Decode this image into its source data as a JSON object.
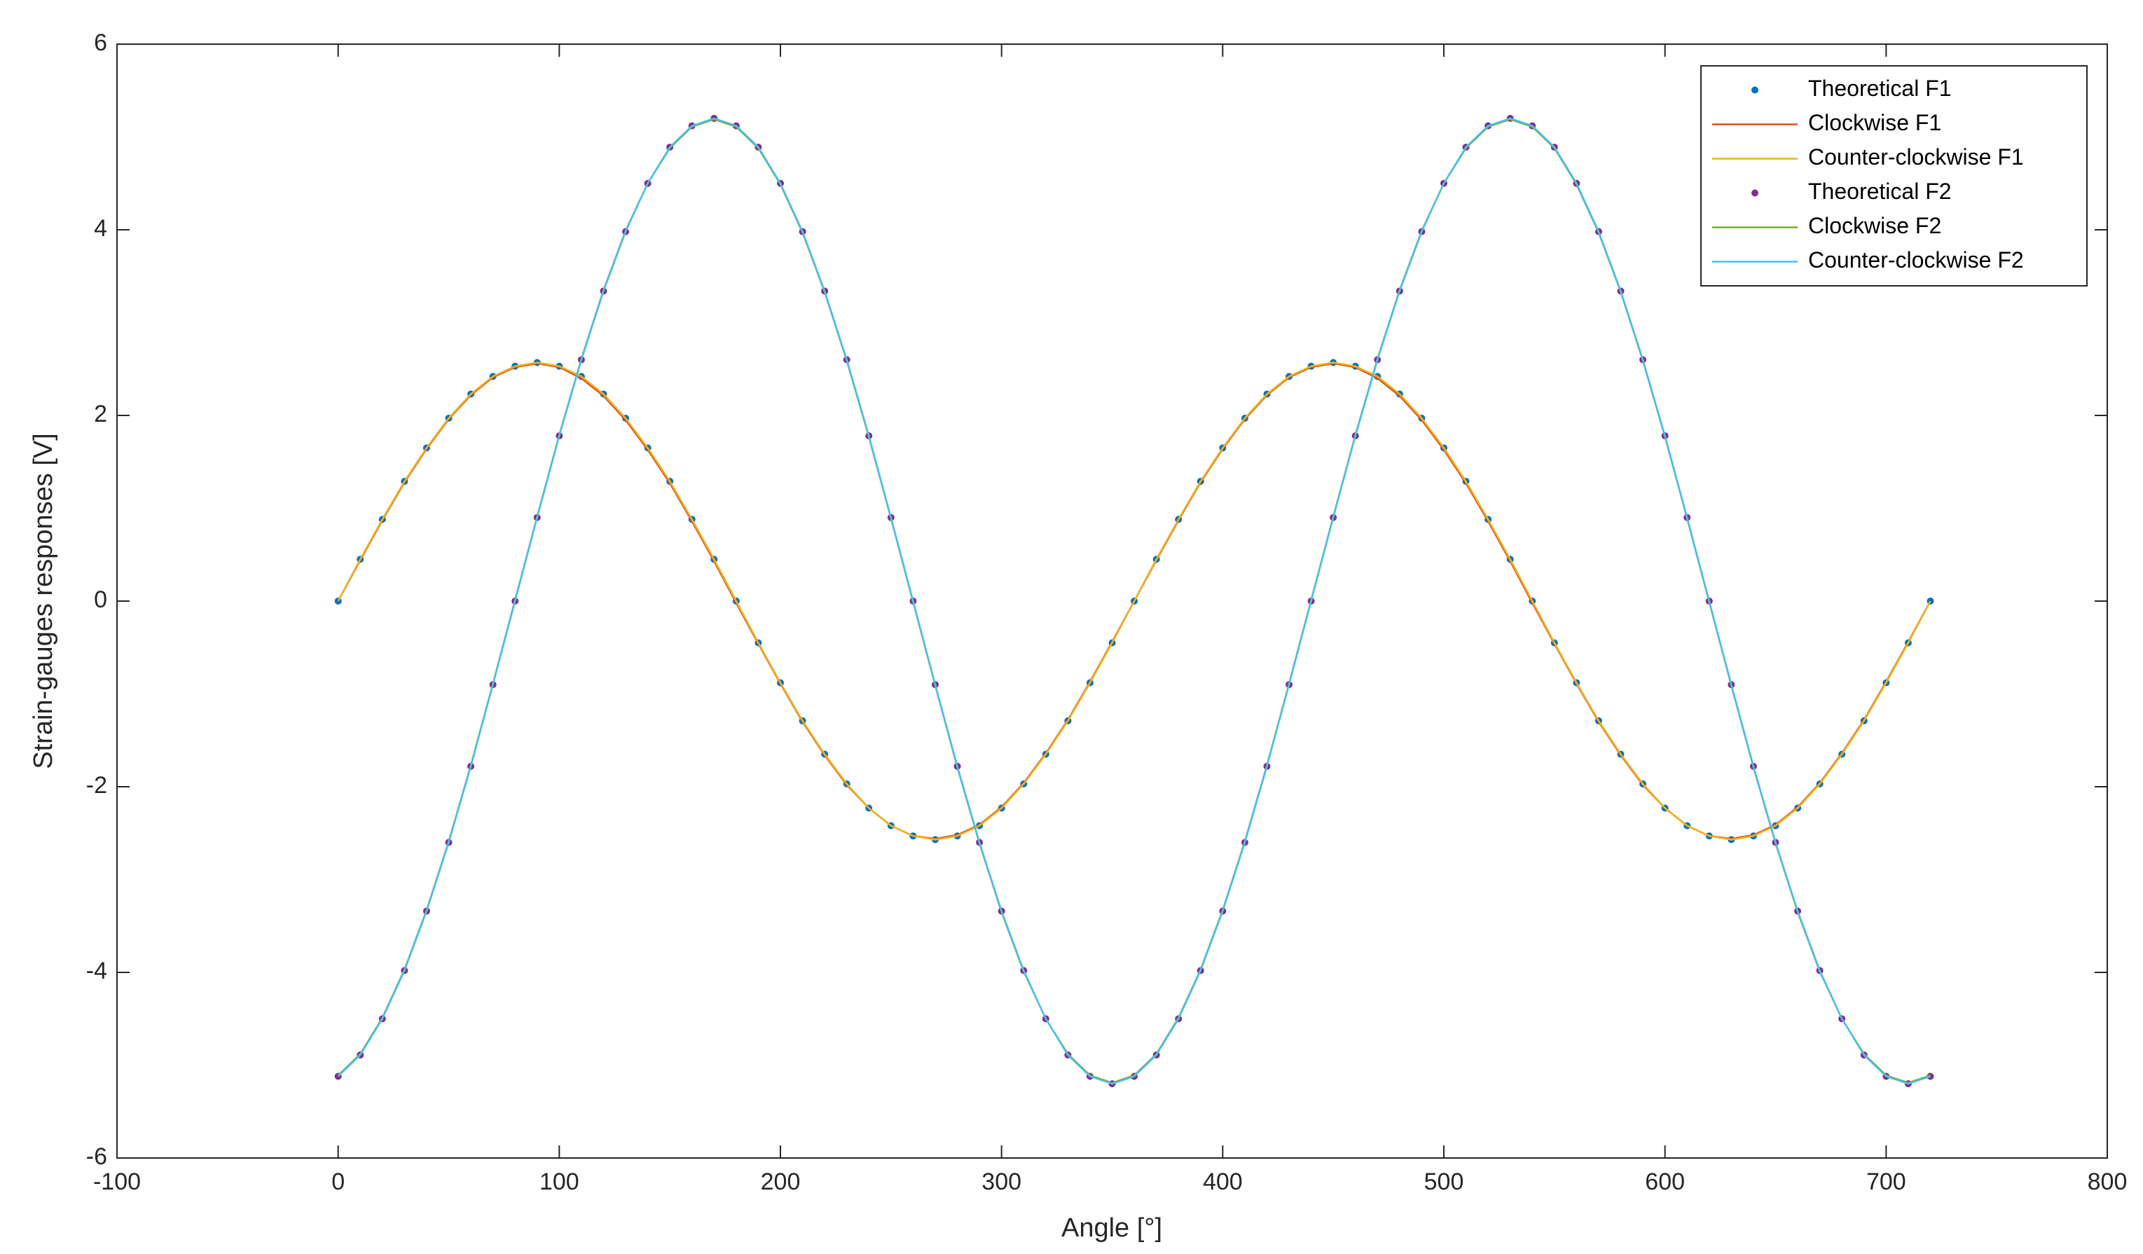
{
  "chart_data": {
    "type": "line",
    "xlabel": "Angle [°]",
    "ylabel": "Strain-gauges responses [V]",
    "xlim": [
      -100,
      800
    ],
    "xticks": [
      -100,
      0,
      100,
      200,
      300,
      400,
      500,
      600,
      700,
      800
    ],
    "ylim": [
      -6,
      6
    ],
    "yticks": [
      -6,
      -4,
      -2,
      0,
      2,
      4,
      6
    ],
    "legend": "upper right",
    "x": [
      0,
      10,
      20,
      30,
      40,
      50,
      60,
      70,
      80,
      90,
      100,
      110,
      120,
      130,
      140,
      150,
      160,
      170,
      180,
      190,
      200,
      210,
      220,
      230,
      240,
      250,
      260,
      270,
      280,
      290,
      300,
      310,
      320,
      330,
      340,
      350,
      360,
      370,
      380,
      390,
      400,
      410,
      420,
      430,
      440,
      450,
      460,
      470,
      480,
      490,
      500,
      510,
      520,
      530,
      540,
      550,
      560,
      570,
      580,
      590,
      600,
      610,
      620,
      630,
      640,
      650,
      660,
      670,
      680,
      690,
      700,
      710,
      720
    ],
    "series": [
      {
        "name": "Theoretical F1",
        "color": "#0072bd",
        "style": "dots",
        "values": [
          0,
          0.45,
          0.88,
          1.29,
          1.65,
          1.97,
          2.23,
          2.42,
          2.53,
          2.57,
          2.53,
          2.42,
          2.23,
          1.97,
          1.65,
          1.29,
          0.88,
          0.45,
          0,
          -0.45,
          -0.88,
          -1.29,
          -1.65,
          -1.97,
          -2.23,
          -2.42,
          -2.53,
          -2.57,
          -2.53,
          -2.42,
          -2.23,
          -1.97,
          -1.65,
          -1.29,
          -0.88,
          -0.45,
          0,
          0.45,
          0.88,
          1.29,
          1.65,
          1.97,
          2.23,
          2.42,
          2.53,
          2.57,
          2.53,
          2.42,
          2.23,
          1.97,
          1.65,
          1.29,
          0.88,
          0.45,
          0,
          -0.45,
          -0.88,
          -1.29,
          -1.65,
          -1.97,
          -2.23,
          -2.42,
          -2.53,
          -2.57,
          -2.53,
          -2.42,
          -2.23,
          -1.97,
          -1.65,
          -1.29,
          -0.88,
          -0.45,
          0
        ]
      },
      {
        "name": "Clockwise F1",
        "color": "#d95319",
        "style": "line",
        "values": [
          0,
          0.44,
          0.87,
          1.28,
          1.64,
          1.96,
          2.22,
          2.41,
          2.52,
          2.56,
          2.52,
          2.4,
          2.21,
          1.95,
          1.63,
          1.27,
          0.86,
          0.43,
          -0.02,
          -0.46,
          -0.89,
          -1.3,
          -1.66,
          -1.98,
          -2.23,
          -2.42,
          -2.53,
          -2.56,
          -2.52,
          -2.41,
          -2.22,
          -1.96,
          -1.64,
          -1.28,
          -0.87,
          -0.44,
          0,
          0.44,
          0.87,
          1.28,
          1.64,
          1.96,
          2.22,
          2.41,
          2.52,
          2.56,
          2.52,
          2.4,
          2.21,
          1.95,
          1.63,
          1.27,
          0.86,
          0.43,
          -0.02,
          -0.46,
          -0.89,
          -1.3,
          -1.66,
          -1.98,
          -2.23,
          -2.42,
          -2.53,
          -2.56,
          -2.52,
          -2.41,
          -2.22,
          -1.96,
          -1.64,
          -1.28,
          -0.87,
          -0.44,
          0
        ]
      },
      {
        "name": "Counter-clockwise F1",
        "color": "#edb120",
        "style": "line",
        "values": [
          0,
          0.45,
          0.88,
          1.29,
          1.65,
          1.97,
          2.23,
          2.42,
          2.53,
          2.57,
          2.53,
          2.42,
          2.23,
          1.97,
          1.65,
          1.29,
          0.88,
          0.45,
          0,
          -0.45,
          -0.88,
          -1.29,
          -1.65,
          -1.97,
          -2.23,
          -2.42,
          -2.53,
          -2.57,
          -2.53,
          -2.42,
          -2.23,
          -1.97,
          -1.65,
          -1.29,
          -0.88,
          -0.45,
          0,
          0.45,
          0.88,
          1.29,
          1.65,
          1.97,
          2.23,
          2.42,
          2.53,
          2.57,
          2.53,
          2.42,
          2.23,
          1.97,
          1.65,
          1.29,
          0.88,
          0.45,
          0,
          -0.45,
          -0.88,
          -1.29,
          -1.65,
          -1.97,
          -2.23,
          -2.42,
          -2.53,
          -2.57,
          -2.53,
          -2.42,
          -2.23,
          -1.97,
          -1.65,
          -1.29,
          -0.88,
          -0.45,
          0
        ]
      },
      {
        "name": "Theoretical F2",
        "color": "#7e2f8e",
        "style": "dots",
        "values": [
          -5.12,
          -4.89,
          -4.5,
          -3.98,
          -3.34,
          -2.6,
          -1.78,
          -0.9,
          0,
          0.9,
          1.78,
          2.6,
          3.34,
          3.98,
          4.5,
          4.89,
          5.12,
          5.2,
          5.12,
          4.89,
          4.5,
          3.98,
          3.34,
          2.6,
          1.78,
          0.9,
          0,
          -0.9,
          -1.78,
          -2.6,
          -3.34,
          -3.98,
          -4.5,
          -4.89,
          -5.12,
          -5.2,
          -5.12,
          -4.89,
          -4.5,
          -3.98,
          -3.34,
          -2.6,
          -1.78,
          -0.9,
          0,
          0.9,
          1.78,
          2.6,
          3.34,
          3.98,
          4.5,
          4.89,
          5.12,
          5.2,
          5.12,
          4.89,
          4.5,
          3.98,
          3.34,
          2.6,
          1.78,
          0.9,
          0,
          -0.9,
          -1.78,
          -2.6,
          -3.34,
          -3.98,
          -4.5,
          -4.89,
          -5.12,
          -5.2,
          -5.12
        ]
      },
      {
        "name": "Clockwise F2",
        "color": "#77ac30",
        "style": "line",
        "values": [
          -5.11,
          -4.88,
          -4.49,
          -3.97,
          -3.33,
          -2.59,
          -1.77,
          -0.89,
          0.01,
          0.91,
          1.79,
          2.61,
          3.35,
          3.99,
          4.5,
          4.88,
          5.11,
          5.19,
          5.11,
          4.88,
          4.49,
          3.97,
          3.33,
          2.59,
          1.77,
          0.89,
          -0.01,
          -0.91,
          -1.79,
          -2.61,
          -3.35,
          -3.99,
          -4.5,
          -4.88,
          -5.11,
          -5.19,
          -5.11,
          -4.88,
          -4.49,
          -3.97,
          -3.33,
          -2.59,
          -1.77,
          -0.89,
          0.01,
          0.91,
          1.79,
          2.61,
          3.35,
          3.99,
          4.5,
          4.88,
          5.11,
          5.19,
          5.11,
          4.88,
          4.49,
          3.97,
          3.33,
          2.59,
          1.77,
          0.89,
          -0.01,
          -0.91,
          -1.79,
          -2.61,
          -3.35,
          -3.99,
          -4.5,
          -4.88,
          -5.11,
          -5.19,
          -5.11
        ]
      },
      {
        "name": "Counter-clockwise F2",
        "color": "#4dbeee",
        "style": "line",
        "values": [
          -5.12,
          -4.89,
          -4.5,
          -3.98,
          -3.34,
          -2.6,
          -1.78,
          -0.9,
          0,
          0.9,
          1.78,
          2.6,
          3.34,
          3.98,
          4.5,
          4.89,
          5.12,
          5.2,
          5.12,
          4.89,
          4.5,
          3.98,
          3.34,
          2.6,
          1.78,
          0.9,
          0,
          -0.9,
          -1.78,
          -2.6,
          -3.34,
          -3.98,
          -4.5,
          -4.89,
          -5.12,
          -5.2,
          -5.12,
          -4.89,
          -4.5,
          -3.98,
          -3.34,
          -2.6,
          -1.78,
          -0.9,
          0,
          0.9,
          1.78,
          2.6,
          3.34,
          3.98,
          4.5,
          4.89,
          5.12,
          5.2,
          5.12,
          4.89,
          4.5,
          3.98,
          3.34,
          2.6,
          1.78,
          0.9,
          0,
          -0.9,
          -1.78,
          -2.6,
          -3.34,
          -3.98,
          -4.5,
          -4.89,
          -5.12,
          -5.2,
          -5.12
        ]
      }
    ]
  }
}
